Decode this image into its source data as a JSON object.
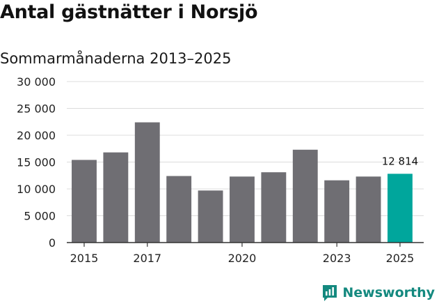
{
  "header": {
    "title": "Antal gästnätter i Norsjö",
    "subtitle": "Sommarmånaderna 2013–2025"
  },
  "brand": {
    "name": "Newsworthy",
    "icon": "newsworthy-logo-icon",
    "color": "#14897f"
  },
  "chart_data": {
    "type": "bar",
    "title": "Antal gästnätter i Norsjö",
    "subtitle": "Sommarmånaderna 2013–2025",
    "categories": [
      "2015",
      "2016",
      "2017",
      "2018",
      "2019",
      "2020",
      "2021",
      "2022",
      "2023",
      "2024",
      "2025"
    ],
    "values": [
      15400,
      16800,
      22400,
      12400,
      9700,
      12300,
      13100,
      17300,
      11600,
      12300,
      12814
    ],
    "tick_labels_x": [
      "2015",
      "2017",
      "2020",
      "2023",
      "2025"
    ],
    "yticks": [
      "0",
      "5 000",
      "10 000",
      "15 000",
      "20 000",
      "25 000",
      "30 000"
    ],
    "ylim": [
      0,
      30000
    ],
    "grid": true,
    "highlight": {
      "category": "2025",
      "label": "12 814"
    },
    "colors": {
      "bar": "#6f6e73",
      "highlight": "#00a69c",
      "grid": "#dcdcdc",
      "axis": "#333333"
    }
  }
}
